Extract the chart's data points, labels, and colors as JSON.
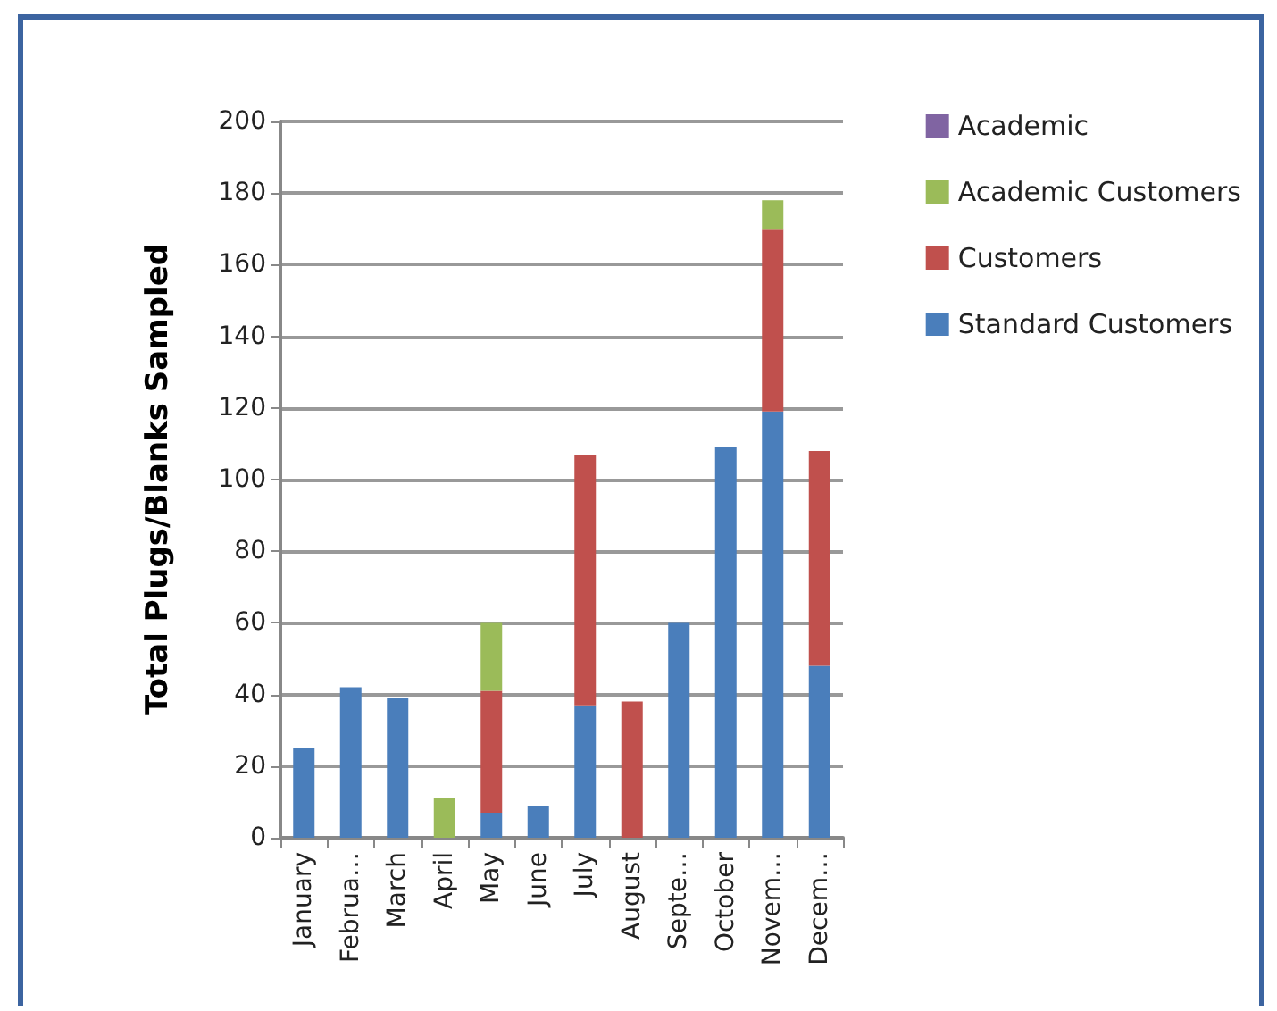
{
  "chart_data": {
    "type": "bar",
    "ylabel": "Total Plugs/Blanks Sampled",
    "categories": [
      "January",
      "Februa…",
      "March",
      "April",
      "May",
      "June",
      "July",
      "August",
      "Septe…",
      "October",
      "Novem…",
      "Decem…"
    ],
    "series": [
      {
        "name": "Standard Customers",
        "color": "#4a7ebb",
        "values": [
          25,
          42,
          39,
          0,
          7,
          9,
          37,
          0,
          60,
          109,
          119,
          48
        ]
      },
      {
        "name": "Customers",
        "color": "#c0504d",
        "values": [
          0,
          0,
          0,
          0,
          34,
          0,
          70,
          38,
          0,
          0,
          51,
          60
        ]
      },
      {
        "name": "Academic Customers",
        "color": "#9bbb59",
        "values": [
          0,
          0,
          0,
          11,
          19,
          0,
          0,
          0,
          0,
          0,
          8,
          0
        ]
      },
      {
        "name": "Academic",
        "color": "#8064a2",
        "values": [
          0,
          0,
          0,
          0,
          0,
          0,
          0,
          0,
          0,
          0,
          0,
          0
        ]
      }
    ],
    "stacked": true,
    "ylim": [
      0,
      200
    ],
    "yticks": [
      0,
      20,
      40,
      60,
      80,
      100,
      120,
      140,
      160,
      180,
      200
    ],
    "grid": "y",
    "legend": "right"
  }
}
